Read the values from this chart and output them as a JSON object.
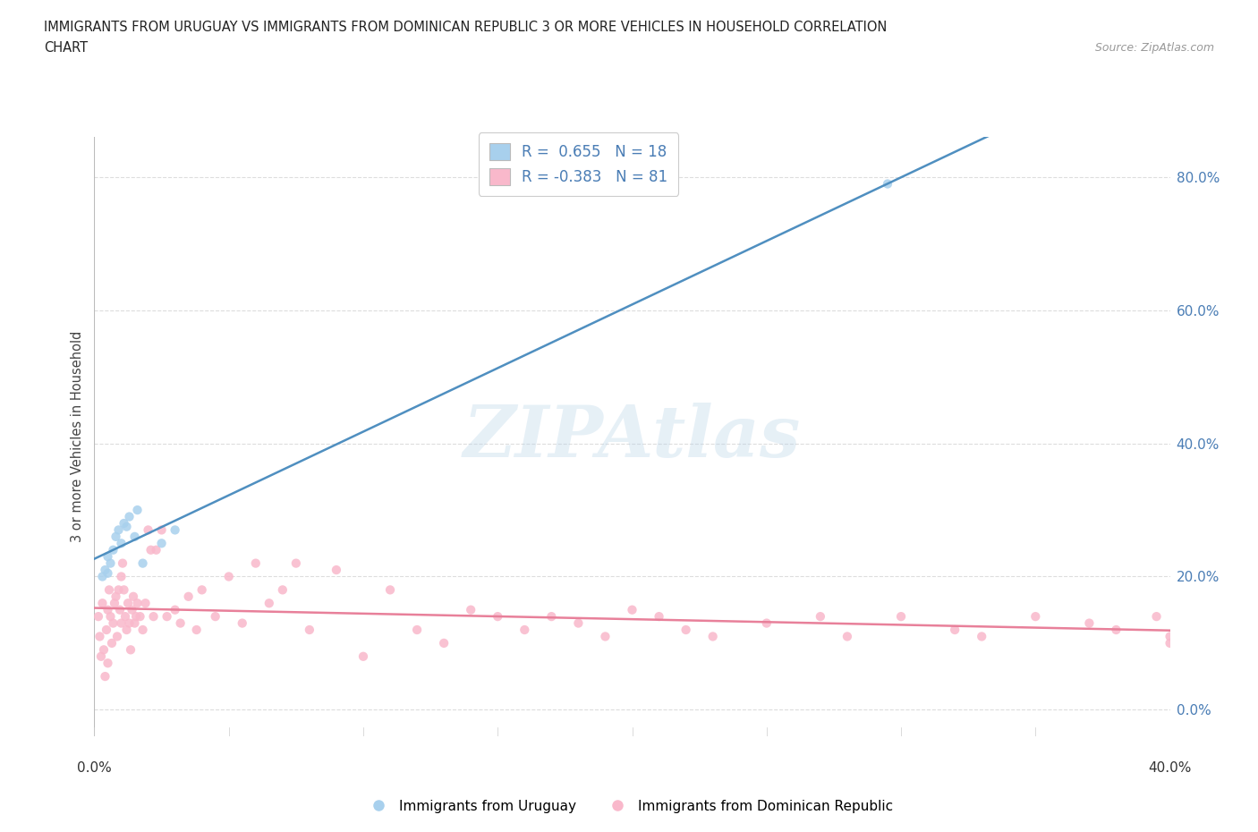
{
  "title_line1": "IMMIGRANTS FROM URUGUAY VS IMMIGRANTS FROM DOMINICAN REPUBLIC 3 OR MORE VEHICLES IN HOUSEHOLD CORRELATION",
  "title_line2": "CHART",
  "source_text": "Source: ZipAtlas.com",
  "ylabel": "3 or more Vehicles in Household",
  "ytick_values": [
    0,
    20,
    40,
    60,
    80
  ],
  "xlim": [
    0,
    40
  ],
  "ylim": [
    -4,
    86
  ],
  "watermark_text": "ZIPAtlas",
  "r_uruguay": 0.655,
  "n_uruguay": 18,
  "r_dominican": -0.383,
  "n_dominican": 81,
  "color_uruguay": "#a8d0ed",
  "color_dominican": "#f9b8cb",
  "color_uruguay_line": "#4f8fc0",
  "color_dominican_line": "#e8809a",
  "background_color": "#ffffff",
  "grid_color": "#dddddd",
  "title_color": "#222222",
  "scatter_alpha": 0.85,
  "scatter_size": 55,
  "uruguay_x": [
    0.3,
    0.4,
    0.5,
    0.5,
    0.6,
    0.7,
    0.8,
    0.9,
    1.0,
    1.1,
    1.2,
    1.3,
    1.5,
    1.6,
    1.8,
    2.5,
    3.0,
    29.5
  ],
  "uruguay_y": [
    20.0,
    21.0,
    20.5,
    23.0,
    22.0,
    24.0,
    26.0,
    27.0,
    25.0,
    28.0,
    27.5,
    29.0,
    26.0,
    30.0,
    22.0,
    25.0,
    27.0,
    79.0
  ],
  "dominican_x": [
    0.15,
    0.2,
    0.25,
    0.3,
    0.35,
    0.4,
    0.45,
    0.5,
    0.5,
    0.55,
    0.6,
    0.65,
    0.7,
    0.75,
    0.8,
    0.85,
    0.9,
    0.95,
    1.0,
    1.0,
    1.05,
    1.1,
    1.15,
    1.2,
    1.25,
    1.3,
    1.35,
    1.4,
    1.45,
    1.5,
    1.55,
    1.6,
    1.7,
    1.8,
    1.9,
    2.0,
    2.1,
    2.2,
    2.3,
    2.5,
    2.7,
    3.0,
    3.2,
    3.5,
    3.8,
    4.0,
    4.5,
    5.0,
    5.5,
    6.0,
    6.5,
    7.0,
    7.5,
    8.0,
    9.0,
    10.0,
    11.0,
    12.0,
    13.0,
    14.0,
    15.0,
    16.0,
    17.0,
    18.0,
    19.0,
    20.0,
    21.0,
    22.0,
    23.0,
    25.0,
    27.0,
    28.0,
    30.0,
    32.0,
    33.0,
    35.0,
    37.0,
    38.0,
    39.5,
    40.0,
    40.0
  ],
  "dominican_y": [
    14.0,
    11.0,
    8.0,
    16.0,
    9.0,
    5.0,
    12.0,
    15.0,
    7.0,
    18.0,
    14.0,
    10.0,
    13.0,
    16.0,
    17.0,
    11.0,
    18.0,
    15.0,
    20.0,
    13.0,
    22.0,
    18.0,
    14.0,
    12.0,
    16.0,
    13.0,
    9.0,
    15.0,
    17.0,
    13.0,
    14.0,
    16.0,
    14.0,
    12.0,
    16.0,
    27.0,
    24.0,
    14.0,
    24.0,
    27.0,
    14.0,
    15.0,
    13.0,
    17.0,
    12.0,
    18.0,
    14.0,
    20.0,
    13.0,
    22.0,
    16.0,
    18.0,
    22.0,
    12.0,
    21.0,
    8.0,
    18.0,
    12.0,
    10.0,
    15.0,
    14.0,
    12.0,
    14.0,
    13.0,
    11.0,
    15.0,
    14.0,
    12.0,
    11.0,
    13.0,
    14.0,
    11.0,
    14.0,
    12.0,
    11.0,
    14.0,
    13.0,
    12.0,
    14.0,
    11.0,
    10.0
  ],
  "legend_label1": "R =  0.655   N = 18",
  "legend_label2": "R = -0.383   N = 81",
  "bottom_label1": "Immigrants from Uruguay",
  "bottom_label2": "Immigrants from Dominican Republic"
}
